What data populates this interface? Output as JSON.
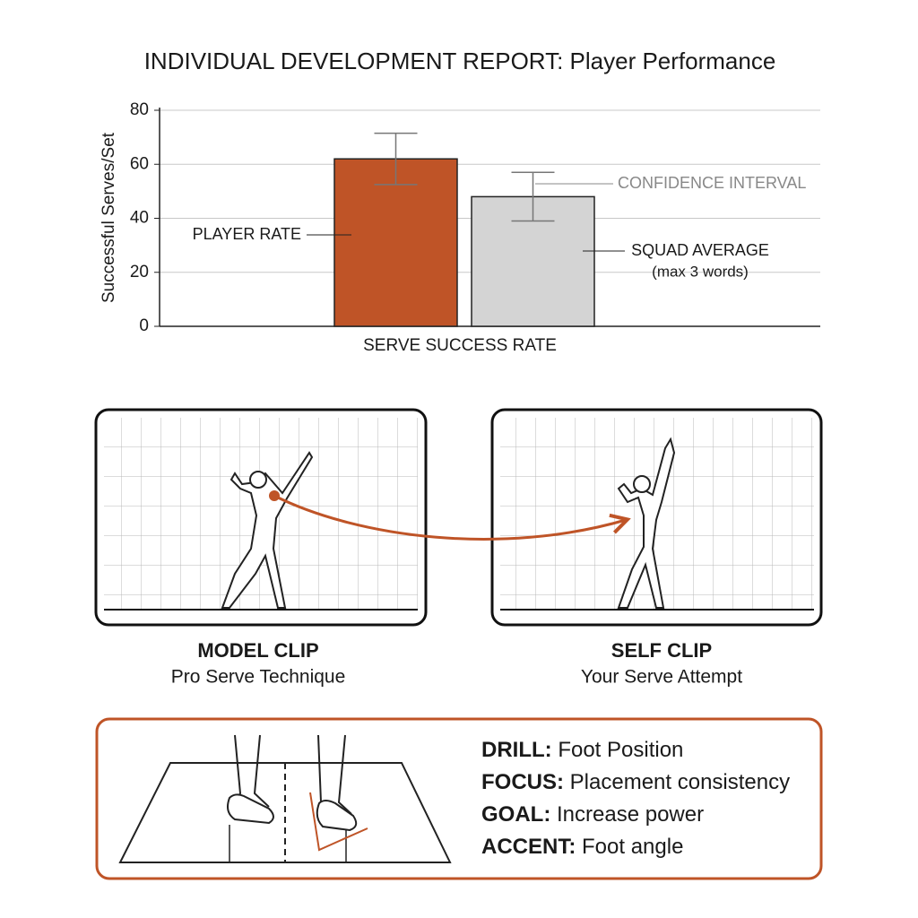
{
  "chart_data": {
    "type": "bar",
    "title": "INDIVIDUAL DEVELOPMENT REPORT: Player Performance",
    "y_label": "Successful Serves/Set",
    "categories": [
      "SERVE SUCCESS RATE"
    ],
    "series": [
      {
        "name": "PLAYER RATE",
        "color": "#bf5427",
        "values": [
          62
        ],
        "errors": [
          9.5
        ]
      },
      {
        "name": "SQUAD AVERAGE",
        "color": "#d4d4d4",
        "values": [
          48
        ],
        "errors": [
          9
        ]
      }
    ],
    "annotations": [
      "CONFIDENCE INTERVAL",
      "(max 3 words)"
    ],
    "ylim": [
      0,
      80
    ],
    "yticks": [
      0,
      20,
      40,
      60,
      80
    ],
    "grid": true
  },
  "clips": [
    {
      "title": "MODEL CLIP",
      "subtitle": "Pro Serve Technique"
    },
    {
      "title": "SELF CLIP",
      "subtitle": "Your Serve Attempt"
    }
  ],
  "drill": [
    {
      "key": "DRILL:",
      "text": "Foot Position"
    },
    {
      "key": "FOCUS:",
      "text": "Placement consistency"
    },
    {
      "key": "GOAL:",
      "text": "Increase power"
    },
    {
      "key": "ACCENT:",
      "text": "Foot angle"
    }
  ]
}
